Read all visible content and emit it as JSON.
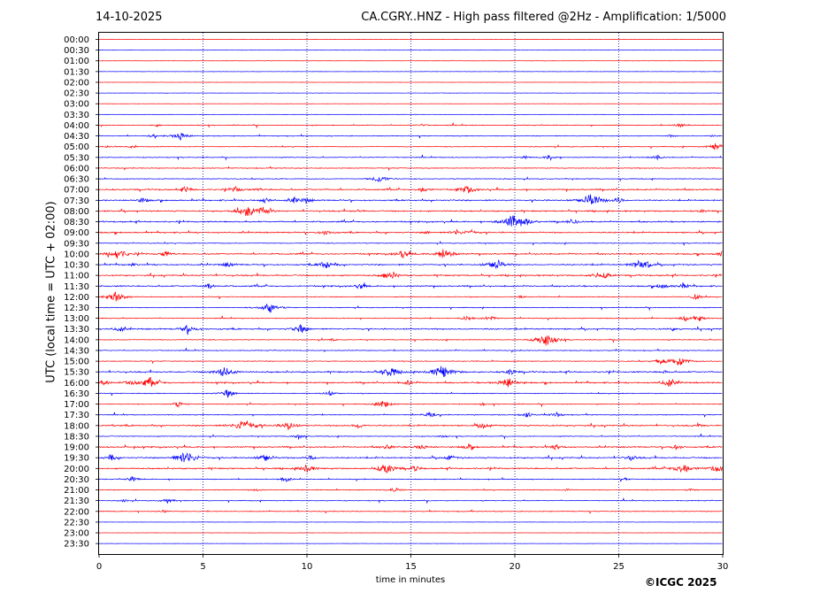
{
  "header": {
    "date": "14-10-2025",
    "title": "CA.CGRY..HNZ - High pass filtered @2Hz - Amplification: 1/5000"
  },
  "footer": {
    "copyright": "©ICGC 2025"
  },
  "colors": {
    "red": "#ff0000",
    "blue": "#0000ff",
    "grid": "#00008b"
  },
  "chart_data": {
    "type": "line",
    "title": "CA.CGRY..HNZ - High pass filtered @2Hz - Amplification: 1/5000",
    "xlabel": "time in minutes",
    "ylabel": "UTC (local time = UTC + 02:00)",
    "xlim": [
      0,
      30
    ],
    "x_ticks": [
      "0",
      "5",
      "10",
      "15",
      "20",
      "25",
      "30"
    ],
    "grid": "vertical dotted at 5-minute intervals",
    "trace_colors": "alternating red and blue, starting red at 00:00",
    "rows": [
      "00:00",
      "00:30",
      "01:00",
      "01:30",
      "02:00",
      "02:30",
      "03:00",
      "03:30",
      "04:00",
      "04:30",
      "05:00",
      "05:30",
      "06:00",
      "06:30",
      "07:00",
      "07:30",
      "08:00",
      "08:30",
      "09:00",
      "09:30",
      "10:00",
      "10:30",
      "11:00",
      "11:30",
      "12:00",
      "12:30",
      "13:00",
      "13:30",
      "14:00",
      "14:30",
      "15:00",
      "15:30",
      "16:00",
      "16:30",
      "17:00",
      "17:30",
      "18:00",
      "18:30",
      "19:00",
      "19:30",
      "20:00",
      "20:30",
      "21:00",
      "21:30",
      "22:00",
      "22:30",
      "23:00",
      "23:30"
    ],
    "activity": [
      0,
      0,
      0,
      0,
      0,
      0,
      0,
      0,
      1,
      1,
      1,
      1,
      1,
      1,
      2,
      2,
      2,
      2,
      2,
      1,
      2,
      2,
      2,
      2,
      1,
      1,
      1,
      2,
      1,
      1,
      1,
      2,
      2,
      1,
      1,
      1,
      2,
      1,
      2,
      2,
      2,
      1,
      1,
      1,
      1,
      0,
      0,
      0
    ],
    "events": [
      {
        "row": "04:00",
        "x": [
          2.8,
          15.5,
          28.0
        ],
        "amp": [
          1,
          1,
          2
        ]
      },
      {
        "row": "04:30",
        "x": [
          2.6,
          3.9,
          27.5,
          29.5
        ],
        "amp": [
          1,
          3,
          1,
          1
        ]
      },
      {
        "row": "05:00",
        "x": [
          0.5,
          1.6,
          29.7
        ],
        "amp": [
          1,
          1,
          3
        ]
      },
      {
        "row": "05:30",
        "x": [
          20.5,
          21.7,
          26.8
        ],
        "amp": [
          1,
          2,
          2
        ]
      },
      {
        "row": "06:30",
        "x": [
          13.5
        ],
        "amp": [
          3
        ]
      },
      {
        "row": "07:00",
        "x": [
          4.2,
          6.6,
          7.7,
          15.6,
          17.7
        ],
        "amp": [
          2,
          2,
          1,
          2,
          3
        ]
      },
      {
        "row": "07:30",
        "x": [
          2.1,
          8.0,
          9.4,
          10.0,
          23.7,
          25.0
        ],
        "amp": [
          2,
          2,
          2,
          2,
          5,
          2
        ]
      },
      {
        "row": "08:00",
        "x": [
          7.1,
          7.9,
          12.5,
          29.0
        ],
        "amp": [
          4,
          3,
          1,
          1
        ]
      },
      {
        "row": "08:30",
        "x": [
          19.9,
          20.6,
          22.8
        ],
        "amp": [
          5,
          2,
          2
        ]
      },
      {
        "row": "09:00",
        "x": [
          10.9,
          15.8,
          17.2,
          17.9
        ],
        "amp": [
          2,
          1,
          2,
          2
        ]
      },
      {
        "row": "10:00",
        "x": [
          0.9,
          3.2,
          14.6,
          16.6,
          30.0
        ],
        "amp": [
          4,
          2,
          3,
          4,
          2
        ]
      },
      {
        "row": "10:30",
        "x": [
          1.6,
          6.2,
          10.9,
          19.1,
          25.9,
          26.4
        ],
        "amp": [
          1,
          2,
          3,
          4,
          3,
          2
        ]
      },
      {
        "row": "11:00",
        "x": [
          13.8,
          14.2,
          23.9,
          24.4
        ],
        "amp": [
          2,
          2,
          2,
          2
        ]
      },
      {
        "row": "11:30",
        "x": [
          5.3,
          12.6,
          27.1,
          28.1
        ],
        "amp": [
          2,
          2,
          2,
          2
        ]
      },
      {
        "row": "12:00",
        "x": [
          0.8,
          20.3,
          28.7
        ],
        "amp": [
          4,
          1,
          2
        ]
      },
      {
        "row": "12:30",
        "x": [
          8.2
        ],
        "amp": [
          4
        ]
      },
      {
        "row": "13:00",
        "x": [
          17.7,
          18.8,
          28.2,
          28.9
        ],
        "amp": [
          2,
          2,
          2,
          2
        ]
      },
      {
        "row": "13:30",
        "x": [
          1.0,
          4.3,
          9.7,
          27.6
        ],
        "amp": [
          2,
          3,
          3,
          1
        ]
      },
      {
        "row": "14:00",
        "x": [
          11.2,
          21.5
        ],
        "amp": [
          1,
          5
        ]
      },
      {
        "row": "15:00",
        "x": [
          27.0,
          27.9
        ],
        "amp": [
          2,
          4
        ]
      },
      {
        "row": "15:30",
        "x": [
          6.0,
          14.0,
          16.5,
          19.8,
          27.2
        ],
        "amp": [
          4,
          4,
          5,
          2,
          1
        ]
      },
      {
        "row": "16:00",
        "x": [
          0.3,
          1.5,
          2.4,
          14.9,
          19.7,
          27.4
        ],
        "amp": [
          2,
          2,
          4,
          2,
          4,
          3
        ]
      },
      {
        "row": "16:30",
        "x": [
          6.2,
          11.1
        ],
        "amp": [
          3,
          2
        ]
      },
      {
        "row": "17:00",
        "x": [
          3.8,
          13.7,
          18.4
        ],
        "amp": [
          2,
          3,
          1
        ]
      },
      {
        "row": "17:30",
        "x": [
          15.9,
          20.6,
          22.0
        ],
        "amp": [
          2,
          2,
          2
        ]
      },
      {
        "row": "18:00",
        "x": [
          7.0,
          9.1,
          12.5,
          18.5,
          28.9
        ],
        "amp": [
          5,
          3,
          2,
          2,
          1
        ]
      },
      {
        "row": "18:30",
        "x": [
          9.6,
          16.5
        ],
        "amp": [
          2,
          1
        ]
      },
      {
        "row": "19:00",
        "x": [
          13.9,
          15.5,
          17.8,
          22.0,
          27.8
        ],
        "amp": [
          2,
          2,
          2,
          2,
          2
        ]
      },
      {
        "row": "19:30",
        "x": [
          0.6,
          4.2,
          8.0,
          10.2,
          16.9,
          25.6
        ],
        "amp": [
          2,
          5,
          3,
          2,
          2,
          2
        ]
      },
      {
        "row": "20:00",
        "x": [
          10.0,
          13.8,
          15.2,
          28.1,
          29.7
        ],
        "amp": [
          3,
          4,
          2,
          4,
          3
        ]
      },
      {
        "row": "20:30",
        "x": [
          1.6,
          9.0,
          25.3
        ],
        "amp": [
          2,
          2,
          1
        ]
      },
      {
        "row": "21:00",
        "x": [
          7.6,
          14.2,
          22.5,
          28.5
        ],
        "amp": [
          1,
          2,
          1,
          1
        ]
      },
      {
        "row": "21:30",
        "x": [
          1.2,
          3.3
        ],
        "amp": [
          1,
          2
        ]
      },
      {
        "row": "22:00",
        "x": [
          3.1
        ],
        "amp": [
          1
        ]
      }
    ]
  }
}
